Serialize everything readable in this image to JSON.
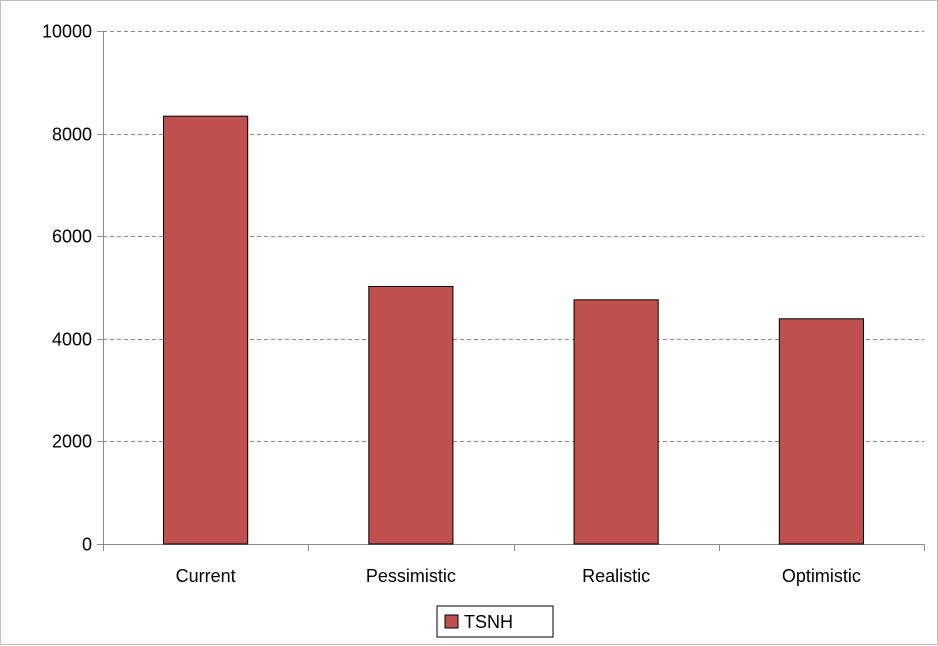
{
  "chart_data": {
    "type": "bar",
    "title": "",
    "xlabel": "",
    "ylabel": "",
    "categories": [
      "Current",
      "Pessimistic",
      "Realistic",
      "Optimistic"
    ],
    "series": [
      {
        "name": "TSNH",
        "values": [
          8340,
          5020,
          4760,
          4390
        ],
        "color": "#c0504d"
      }
    ],
    "ylim": [
      0,
      10000
    ],
    "yticks": [
      "0",
      "2000",
      "4000",
      "6000",
      "8000",
      "10000"
    ],
    "grid": true,
    "grid_style": "dashed",
    "legend_position": "bottom-center",
    "bar_border_color": "#000000",
    "grid_color": "#8c8c8c"
  }
}
